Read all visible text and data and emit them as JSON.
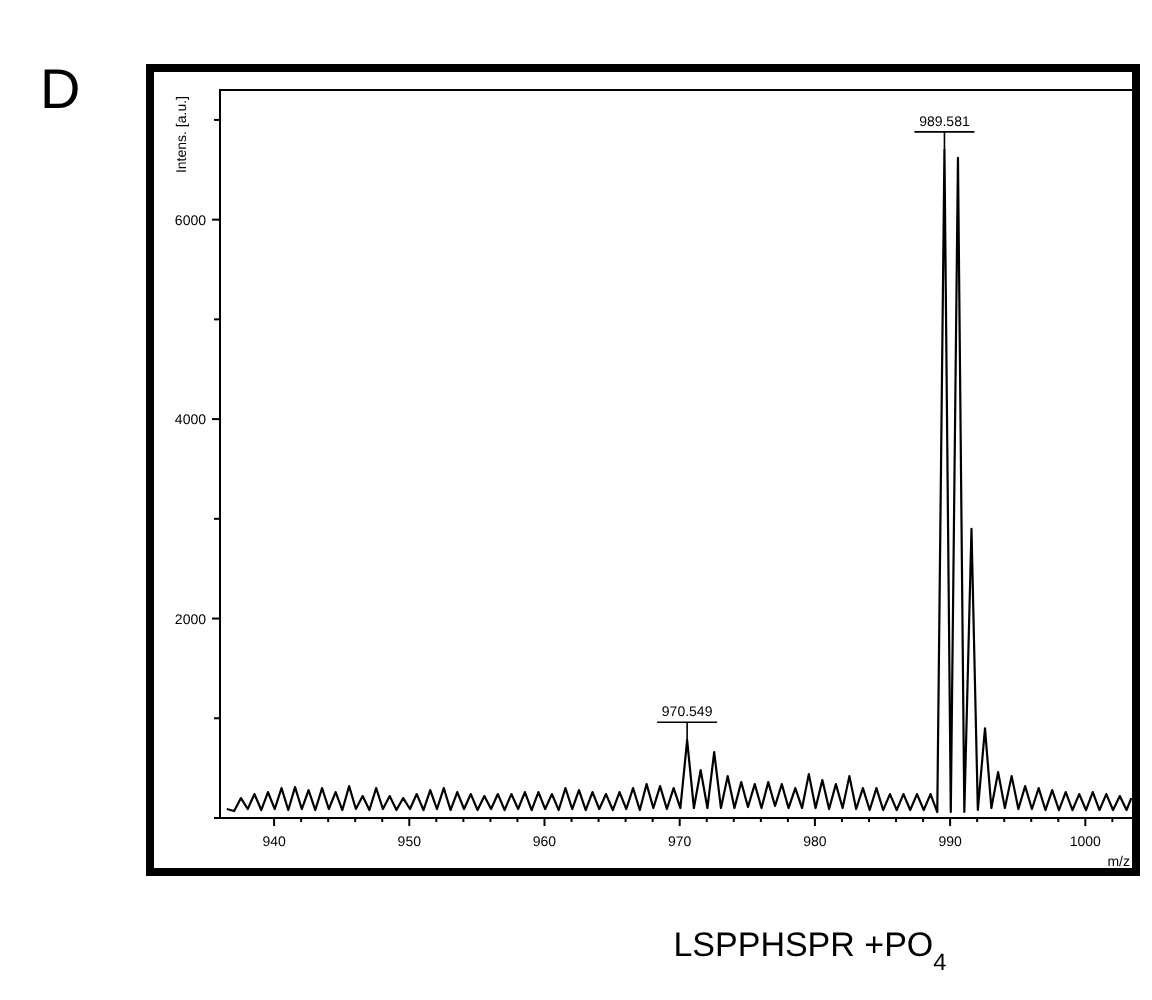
{
  "chart_data": {
    "type": "line",
    "title": "D",
    "xlabel": "m/z",
    "ylabel": "Intens. [a.u.]",
    "annotations": [
      {
        "text": "970.549",
        "x": 970.549,
        "y": 780
      },
      {
        "text": "989.581",
        "x": 989.581,
        "y": 6700
      },
      "LSPPHSPR +PO$_{4}$"
    ],
    "xlim": [
      936,
      1003.6
    ],
    "ylim": [
      0,
      7300
    ],
    "xticks": [
      940,
      {
        "value": 942,
        "label": null
      },
      {
        "value": 944,
        "label": null
      },
      {
        "value": 946,
        "label": null
      },
      {
        "value": 948,
        "label": null
      },
      950,
      {
        "value": 952,
        "label": null
      },
      {
        "value": 954,
        "label": null
      },
      {
        "value": 956,
        "label": null
      },
      {
        "value": 958,
        "label": null
      },
      960,
      {
        "value": 962,
        "label": null
      },
      {
        "value": 964,
        "label": null
      },
      {
        "value": 966,
        "label": null
      },
      {
        "value": 968,
        "label": null
      },
      970,
      {
        "value": 972,
        "label": null
      },
      {
        "value": 974,
        "label": null
      },
      {
        "value": 976,
        "label": null
      },
      {
        "value": 978,
        "label": null
      },
      980,
      {
        "value": 982,
        "label": null
      },
      {
        "value": 984,
        "label": null
      },
      {
        "value": 986,
        "label": null
      },
      {
        "value": 988,
        "label": null
      },
      990,
      {
        "value": 992,
        "label": null
      },
      {
        "value": 994,
        "label": null
      },
      {
        "value": 996,
        "label": null
      },
      {
        "value": 998,
        "label": null
      },
      1000,
      {
        "value": 1002,
        "label": null
      }
    ],
    "yticks": [
      {
        "value": 0,
        "label": null
      },
      {
        "value": 1000,
        "label": null
      },
      2000,
      {
        "value": 3000,
        "label": null
      },
      4000,
      {
        "value": 5000,
        "label": null
      },
      6000,
      {
        "value": 7000,
        "label": null
      }
    ],
    "grid": false,
    "marker": "none",
    "line_style": "solid",
    "series": [
      {
        "color": "#000000",
        "x": [
          936.5,
          937.05,
          937.55,
          938.05,
          938.55,
          939.05,
          939.55,
          940.05,
          940.55,
          941.05,
          941.55,
          942.05,
          942.55,
          943.05,
          943.55,
          944.05,
          944.55,
          945.05,
          945.55,
          946.05,
          946.55,
          947.05,
          947.55,
          948.05,
          948.55,
          949.05,
          949.55,
          950.05,
          950.55,
          951.05,
          951.55,
          952.05,
          952.55,
          953.05,
          953.55,
          954.05,
          954.55,
          955.05,
          955.55,
          956.05,
          956.55,
          957.05,
          957.55,
          958.05,
          958.55,
          959.05,
          959.55,
          960.05,
          960.55,
          961.05,
          961.55,
          962.05,
          962.55,
          963.05,
          963.55,
          964.05,
          964.55,
          965.05,
          965.55,
          966.05,
          966.55,
          967.05,
          967.55,
          968.05,
          968.55,
          969.05,
          969.55,
          970.05,
          970.55,
          971.05,
          971.55,
          972.05,
          972.55,
          973.05,
          973.55,
          974.05,
          974.55,
          975.05,
          975.55,
          976.05,
          976.55,
          977.05,
          977.55,
          978.05,
          978.55,
          979.05,
          979.55,
          980.05,
          980.55,
          981.05,
          981.55,
          982.05,
          982.55,
          983.05,
          983.55,
          984.05,
          984.55,
          985.05,
          985.55,
          986.05,
          986.55,
          987.05,
          987.55,
          988.05,
          988.55,
          989.05,
          989.58,
          990.05,
          990.58,
          991.05,
          991.58,
          992.05,
          992.58,
          993.05,
          993.55,
          994.05,
          994.55,
          995.05,
          995.55,
          996.05,
          996.55,
          997.05,
          997.55,
          998.05,
          998.55,
          999.05,
          999.55,
          1000.05,
          1000.55,
          1001.05,
          1001.55,
          1002.05,
          1002.55,
          1003.05,
          1003.4
        ],
        "values": [
          90,
          70,
          200,
          90,
          240,
          80,
          260,
          90,
          300,
          80,
          310,
          90,
          280,
          80,
          300,
          90,
          260,
          80,
          320,
          90,
          220,
          80,
          300,
          90,
          220,
          80,
          200,
          90,
          240,
          80,
          280,
          90,
          300,
          80,
          260,
          90,
          240,
          80,
          220,
          90,
          240,
          80,
          240,
          90,
          260,
          80,
          260,
          90,
          240,
          80,
          300,
          90,
          280,
          80,
          260,
          90,
          240,
          80,
          260,
          90,
          300,
          80,
          340,
          100,
          320,
          90,
          300,
          100,
          780,
          100,
          480,
          100,
          660,
          100,
          420,
          100,
          360,
          110,
          340,
          100,
          360,
          120,
          340,
          100,
          300,
          100,
          440,
          100,
          380,
          90,
          340,
          100,
          420,
          90,
          300,
          80,
          300,
          80,
          240,
          80,
          240,
          80,
          240,
          80,
          240,
          60,
          6700,
          60,
          6620,
          60,
          2900,
          80,
          900,
          100,
          460,
          100,
          420,
          90,
          320,
          90,
          300,
          80,
          280,
          80,
          260,
          80,
          240,
          80,
          260,
          80,
          240,
          80,
          220,
          80,
          200
        ]
      }
    ]
  }
}
